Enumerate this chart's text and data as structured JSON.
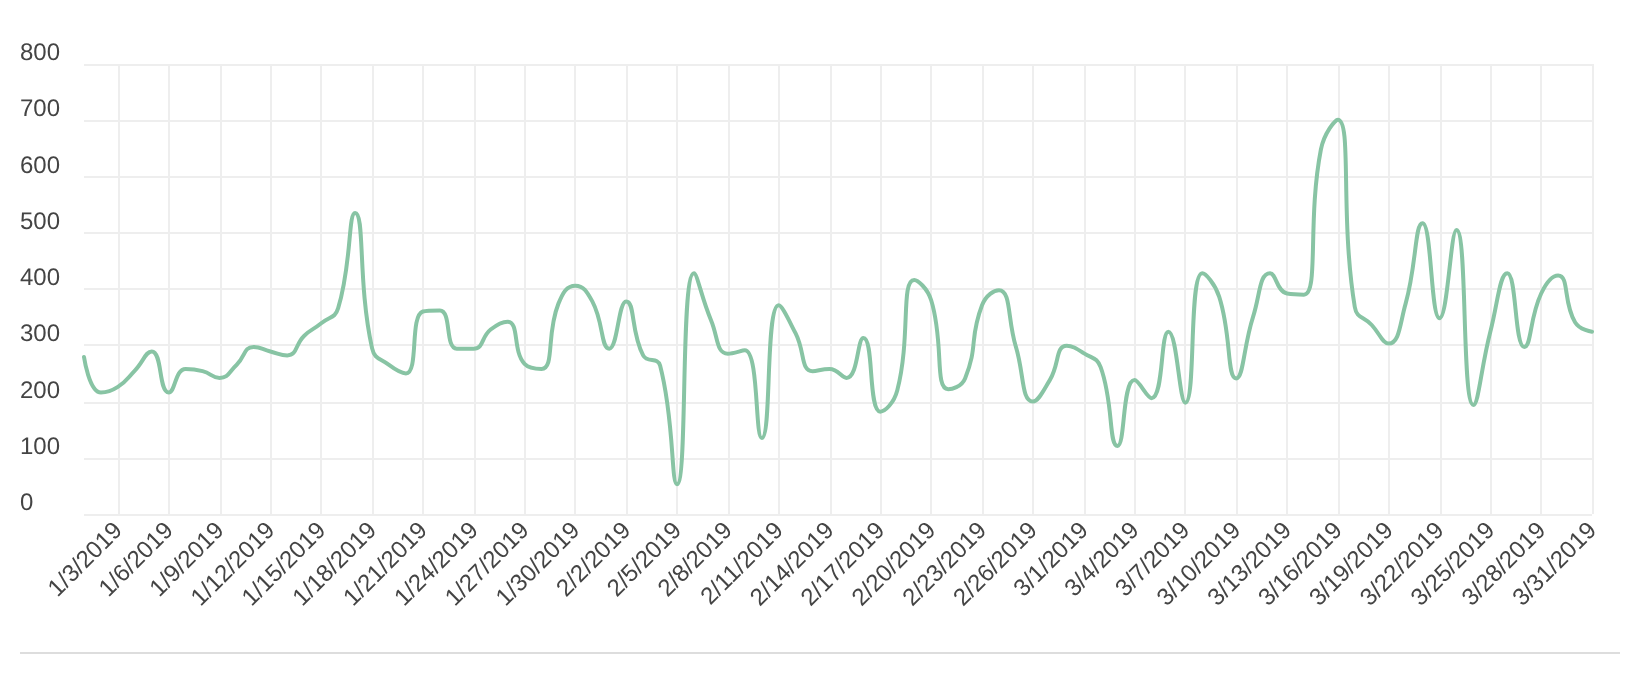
{
  "chart_data": {
    "type": "line",
    "categories": [
      null,
      null,
      "1/3/2019",
      null,
      null,
      "1/6/2019",
      null,
      null,
      "1/9/2019",
      null,
      null,
      "1/12/2019",
      null,
      null,
      "1/15/2019",
      null,
      null,
      "1/18/2019",
      null,
      null,
      "1/21/2019",
      null,
      null,
      "1/24/2019",
      null,
      null,
      "1/27/2019",
      null,
      null,
      "1/30/2019",
      null,
      null,
      "2/2/2019",
      null,
      null,
      "2/5/2019",
      null,
      null,
      "2/8/2019",
      null,
      null,
      "2/11/2019",
      null,
      null,
      "2/14/2019",
      null,
      null,
      "2/17/2019",
      null,
      null,
      "2/20/2019",
      null,
      null,
      "2/23/2019",
      null,
      null,
      "2/26/2019",
      null,
      null,
      "3/1/2019",
      null,
      null,
      "3/4/2019",
      null,
      null,
      "3/7/2019",
      null,
      null,
      "3/10/2019",
      null,
      null,
      "3/13/2019",
      null,
      null,
      "3/16/2019",
      null,
      null,
      "3/19/2019",
      null,
      null,
      "3/22/2019",
      null,
      null,
      "3/25/2019",
      null,
      null,
      "3/28/2019",
      null,
      null,
      "3/31/2019"
    ],
    "series": [
      {
        "color": "#88c4a4",
        "values": [
          279,
          216,
          226,
          255,
          289,
          216,
          258,
          254,
          242,
          265,
          297,
          289,
          282,
          317,
          339,
          366,
          535,
          295,
          265,
          250,
          360,
          362,
          294,
          294,
          328,
          342,
          267,
          258,
          374,
          406,
          378,
          294,
          378,
          282,
          264,
          53,
          428,
          345,
          285,
          291,
          135,
          371,
          321,
          254,
          258,
          242,
          313,
          182,
          220,
          416,
          380,
          222,
          241,
          371,
          398,
          297,
          200,
          238,
          299,
          286,
          261,
          121,
          238,
          206,
          324,
          198,
          428,
          386,
          241,
          351,
          428,
          392,
          390,
          648,
          701,
          368,
          336,
          303,
          374,
          517,
          348,
          505,
          194,
          324,
          428,
          297,
          392,
          424,
          341,
          324
        ]
      }
    ],
    "ylim": [
      0,
      800
    ],
    "yticks": [
      0,
      100,
      200,
      300,
      400,
      500,
      600,
      700,
      800
    ],
    "grid": true,
    "marker": "none",
    "line_style": "solid"
  }
}
